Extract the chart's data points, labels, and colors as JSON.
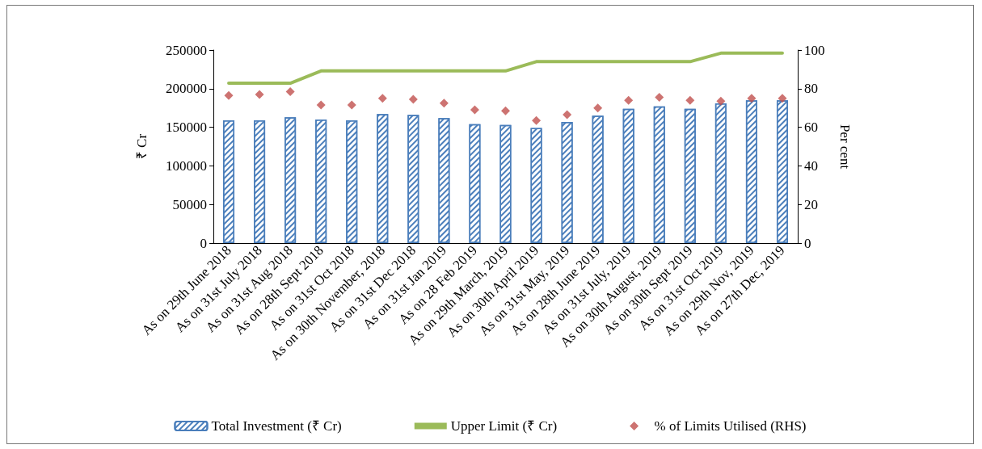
{
  "chart_data": {
    "type": "bar",
    "ylabel": "₹ Cr",
    "y2label": "Per cent",
    "categories": [
      "As on 29th June 2018",
      "As on 31st July 2018",
      "As on 31st Aug 2018",
      "As on 28th Sept 2018",
      "As on 31st Oct 2018",
      "As on 30th November, 2018",
      "As on 31st Dec 2018",
      "As on 31st Jan 2019",
      "As on 28 Feb 2019",
      "As on 29th March, 2019",
      "As on 30th April 2019",
      "As on 31st May, 2019",
      "As on 28th June 2019",
      "As on 31st July, 2019",
      "As on 30th August, 2019",
      "As on 30th Sept 2019",
      "As on 31st Oct 2019",
      "As on 29th Nov, 2019",
      "As on 27th Dec, 2019"
    ],
    "series": [
      {
        "name": "Total Investment (₹ Cr)",
        "color": "#4a7ebb",
        "values": [
          159000,
          159000,
          163000,
          160000,
          159000,
          167000,
          166000,
          162000,
          154000,
          153000,
          149000,
          157000,
          165000,
          174000,
          177000,
          174000,
          181000,
          185000,
          185000
        ]
      },
      {
        "name": "Upper Limit (₹ Cr)",
        "type": "line",
        "color": "#9bbb59",
        "marker": "none",
        "values": [
          207000,
          207000,
          207000,
          223000,
          223000,
          223000,
          223000,
          223000,
          223000,
          223000,
          235000,
          235000,
          235000,
          235000,
          235000,
          235000,
          246000,
          246000,
          246000
        ]
      },
      {
        "name": "% of Limits Utilised (RHS)",
        "type": "scatter",
        "axis": "y2",
        "color": "#c0504d",
        "marker": "diamond",
        "values": [
          76.5,
          77,
          78.5,
          71.5,
          71.5,
          75,
          74.5,
          72.5,
          69,
          68.5,
          63.5,
          66.5,
          70,
          74,
          75.5,
          74,
          73.5,
          75,
          75
        ]
      }
    ],
    "ylim": [
      0,
      250000
    ],
    "yticks": [
      0,
      50000,
      100000,
      150000,
      200000,
      250000
    ],
    "y2lim": [
      0,
      100
    ],
    "y2ticks": [
      0,
      20,
      40,
      60,
      80,
      100
    ],
    "grid": false,
    "legend": "bottom"
  }
}
